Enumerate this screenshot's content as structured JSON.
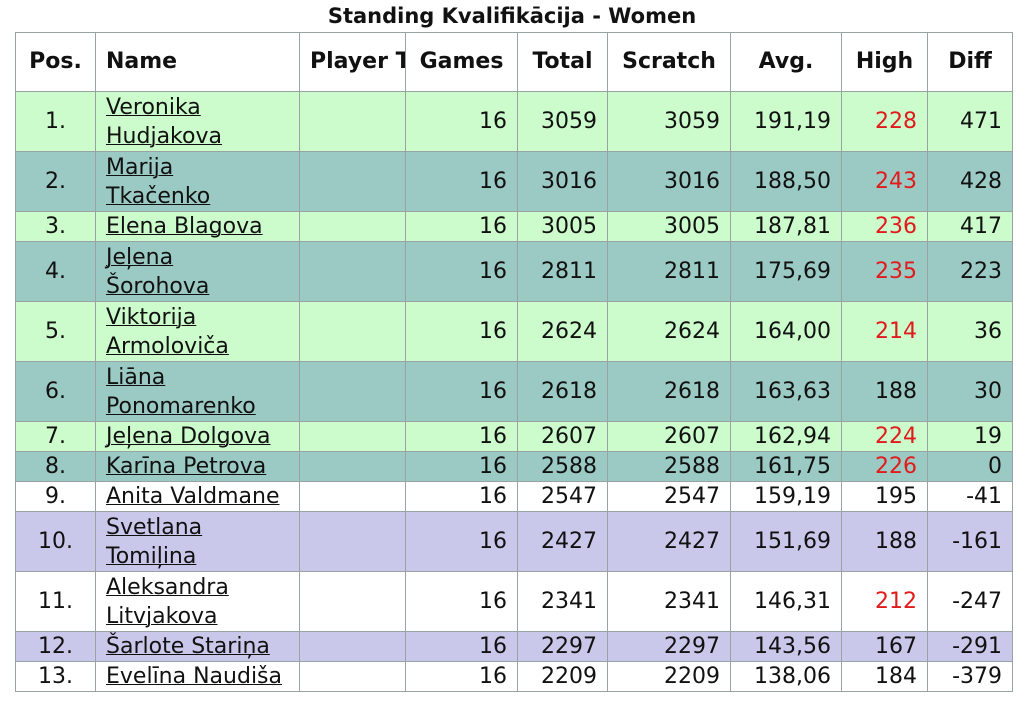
{
  "title": "Standing Kvalifikācija - Women",
  "headers": {
    "pos": "Pos.",
    "name": "Name",
    "team": "Player Team",
    "games": "Games",
    "total": "Total",
    "scratch": "Scratch",
    "avg": "Avg.",
    "high": "High",
    "diff": "Diff"
  },
  "colors": {
    "row_light_green": "#ccfccc",
    "row_teal": "#9bcac4",
    "row_white": "#ffffff",
    "row_lavender": "#cac8ea",
    "high_highlight": "#e01b1b",
    "cut_line": "#b01010"
  },
  "rows": [
    {
      "pos": "1.",
      "name1": "Veronika",
      "name2": "Hudjakova",
      "team": "",
      "games": "16",
      "total": "3059",
      "scratch": "3059",
      "avg": "191,19",
      "high": "228",
      "high_red": true,
      "diff": "471",
      "style": "light"
    },
    {
      "pos": "2.",
      "name1": "Marija",
      "name2": "Tkačenko",
      "team": "",
      "games": "16",
      "total": "3016",
      "scratch": "3016",
      "avg": "188,50",
      "high": "243",
      "high_red": true,
      "diff": "428",
      "style": "teal"
    },
    {
      "pos": "3.",
      "name1": "Elena Blagova",
      "name2": "",
      "team": "",
      "games": "16",
      "total": "3005",
      "scratch": "3005",
      "avg": "187,81",
      "high": "236",
      "high_red": true,
      "diff": "417",
      "style": "light"
    },
    {
      "pos": "4.",
      "name1": "Jeļena",
      "name2": "Šorohova",
      "team": "",
      "games": "16",
      "total": "2811",
      "scratch": "2811",
      "avg": "175,69",
      "high": "235",
      "high_red": true,
      "diff": "223",
      "style": "teal"
    },
    {
      "pos": "5.",
      "name1": "Viktorija",
      "name2": "Armoloviča",
      "team": "",
      "games": "16",
      "total": "2624",
      "scratch": "2624",
      "avg": "164,00",
      "high": "214",
      "high_red": true,
      "diff": "36",
      "style": "light"
    },
    {
      "pos": "6.",
      "name1": "Liāna",
      "name2": "Ponomarenko",
      "team": "",
      "games": "16",
      "total": "2618",
      "scratch": "2618",
      "avg": "163,63",
      "high": "188",
      "high_red": false,
      "diff": "30",
      "style": "teal"
    },
    {
      "pos": "7.",
      "name1": "Jeļena Dolgova",
      "name2": "",
      "team": "",
      "games": "16",
      "total": "2607",
      "scratch": "2607",
      "avg": "162,94",
      "high": "224",
      "high_red": true,
      "diff": "19",
      "style": "light"
    },
    {
      "pos": "8.",
      "name1": "Karīna Petrova",
      "name2": "",
      "team": "",
      "games": "16",
      "total": "2588",
      "scratch": "2588",
      "avg": "161,75",
      "high": "226",
      "high_red": true,
      "diff": "0",
      "style": "teal",
      "cut": true
    },
    {
      "pos": "9.",
      "name1": "Anita Valdmane",
      "name2": "",
      "team": "",
      "games": "16",
      "total": "2547",
      "scratch": "2547",
      "avg": "159,19",
      "high": "195",
      "high_red": false,
      "diff": "-41",
      "style": "white"
    },
    {
      "pos": "10.",
      "name1": "Svetlana",
      "name2": "Tomiļina",
      "team": "",
      "games": "16",
      "total": "2427",
      "scratch": "2427",
      "avg": "151,69",
      "high": "188",
      "high_red": false,
      "diff": "-161",
      "style": "lav"
    },
    {
      "pos": "11.",
      "name1": "Aleksandra",
      "name2": "Litvjakova",
      "team": "",
      "games": "16",
      "total": "2341",
      "scratch": "2341",
      "avg": "146,31",
      "high": "212",
      "high_red": true,
      "diff": "-247",
      "style": "white"
    },
    {
      "pos": "12.",
      "name1": "Šarlote Stariņa",
      "name2": "",
      "team": "",
      "games": "16",
      "total": "2297",
      "scratch": "2297",
      "avg": "143,56",
      "high": "167",
      "high_red": false,
      "diff": "-291",
      "style": "lav"
    },
    {
      "pos": "13.",
      "name1": "Evelīna Naudiša",
      "name2": "",
      "team": "",
      "games": "16",
      "total": "2209",
      "scratch": "2209",
      "avg": "138,06",
      "high": "184",
      "high_red": false,
      "diff": "-379",
      "style": "white"
    }
  ]
}
